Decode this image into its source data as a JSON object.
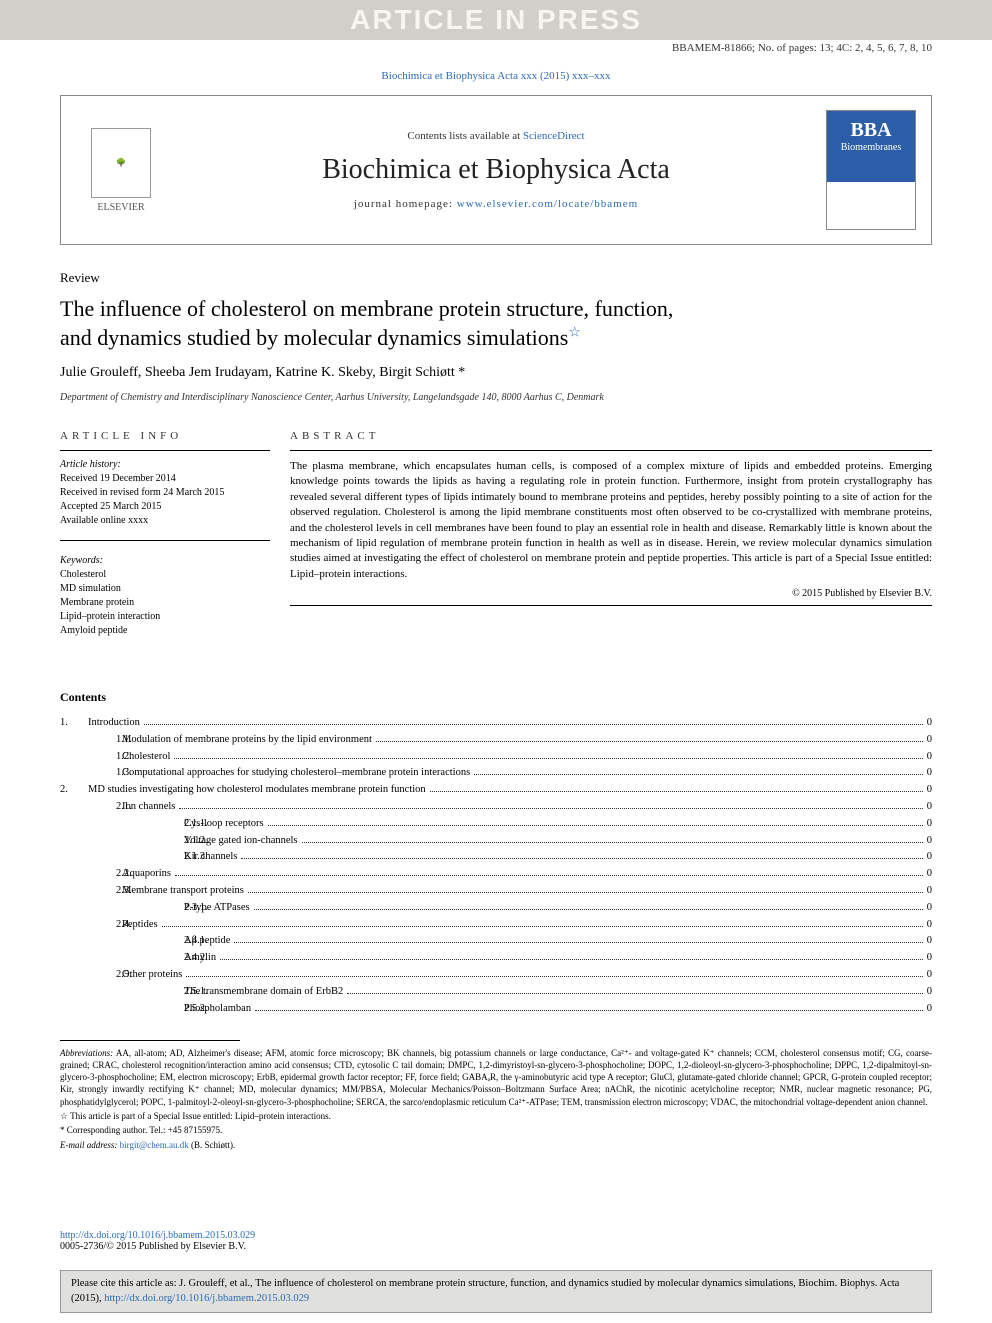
{
  "watermark": "ARTICLE IN PRESS",
  "docinfo": "BBAMEM-81866; No. of pages: 13; 4C: 2, 4, 5, 6, 7, 8, 10",
  "citation_top": "Biochimica et Biophysica Acta xxx (2015) xxx–xxx",
  "header": {
    "contents_prefix": "Contents lists available at ",
    "contents_link": "ScienceDirect",
    "journal_title": "Biochimica et Biophysica Acta",
    "homepage_prefix": "journal homepage: ",
    "homepage_link": "www.elsevier.com/locate/bbamem",
    "elsevier": "ELSEVIER",
    "bba_abbrev": "BBA",
    "bba_sub": "Biomembranes"
  },
  "article": {
    "type": "Review",
    "title_line1": "The influence of cholesterol on membrane protein structure, function,",
    "title_line2": "and dynamics studied by molecular dynamics simulations",
    "star": "☆",
    "authors": "Julie Grouleff, Sheeba Jem Irudayam, Katrine K. Skeby, Birgit Schiøtt *",
    "affiliation": "Department of Chemistry and Interdisciplinary Nanoscience Center, Aarhus University, Langelandsgade 140, 8000 Aarhus C, Denmark"
  },
  "info": {
    "left_head": "ARTICLE INFO",
    "right_head": "ABSTRACT",
    "history_head": "Article history:",
    "history": [
      "Received 19 December 2014",
      "Received in revised form 24 March 2015",
      "Accepted 25 March 2015",
      "Available online xxxx"
    ],
    "keywords_head": "Keywords:",
    "keywords": [
      "Cholesterol",
      "MD simulation",
      "Membrane protein",
      "Lipid–protein interaction",
      "Amyloid peptide"
    ],
    "abstract": "The plasma membrane, which encapsulates human cells, is composed of a complex mixture of lipids and embedded proteins. Emerging knowledge points towards the lipids as having a regulating role in protein function. Furthermore, insight from protein crystallography has revealed several different types of lipids intimately bound to membrane proteins and peptides, hereby possibly pointing to a site of action for the observed regulation. Cholesterol is among the lipid membrane constituents most often observed to be co-crystallized with membrane proteins, and the cholesterol levels in cell membranes have been found to play an essential role in health and disease. Remarkably little is known about the mechanism of lipid regulation of membrane protein function in health as well as in disease. Herein, we review molecular dynamics simulation studies aimed at investigating the effect of cholesterol on membrane protein and peptide properties. This article is part of a Special Issue entitled: Lipid–protein interactions.",
    "copyright": "© 2015 Published by Elsevier B.V."
  },
  "contents": {
    "head": "Contents",
    "rows": [
      {
        "indent": 0,
        "num": "1.",
        "label": "Introduction",
        "page": "0"
      },
      {
        "indent": 1,
        "num": "1.1.",
        "label": "Modulation of membrane proteins by the lipid environment",
        "page": "0"
      },
      {
        "indent": 1,
        "num": "1.2.",
        "label": "Cholesterol",
        "page": "0"
      },
      {
        "indent": 1,
        "num": "1.3.",
        "label": "Computational approaches for studying cholesterol–membrane protein interactions",
        "page": "0"
      },
      {
        "indent": 0,
        "num": "2.",
        "label": "MD studies investigating how cholesterol modulates membrane protein function",
        "page": "0"
      },
      {
        "indent": 1,
        "num": "2.1.",
        "label": "Ion channels",
        "page": "0"
      },
      {
        "indent": 2,
        "num": "2.1.1.",
        "label": "Cys-loop receptors",
        "page": "0"
      },
      {
        "indent": 2,
        "num": "2.1.2.",
        "label": "Voltage gated ion-channels",
        "page": "0"
      },
      {
        "indent": 2,
        "num": "2.1.3.",
        "label": "Kir channels",
        "page": "0"
      },
      {
        "indent": 1,
        "num": "2.2.",
        "label": "Aquaporins",
        "page": "0"
      },
      {
        "indent": 1,
        "num": "2.3.",
        "label": "Membrane transport proteins",
        "page": "0"
      },
      {
        "indent": 2,
        "num": "2.3.1.",
        "label": "P-type ATPases",
        "page": "0"
      },
      {
        "indent": 1,
        "num": "2.4.",
        "label": "Peptides",
        "page": "0"
      },
      {
        "indent": 2,
        "num": "2.4.1.",
        "label": "Aβ peptide",
        "page": "0"
      },
      {
        "indent": 2,
        "num": "2.4.2.",
        "label": "Amylin",
        "page": "0"
      },
      {
        "indent": 1,
        "num": "2.5.",
        "label": "Other proteins",
        "page": "0"
      },
      {
        "indent": 2,
        "num": "2.5.1.",
        "label": "The transmembrane domain of ErbB2",
        "page": "0"
      },
      {
        "indent": 2,
        "num": "2.5.2.",
        "label": "Phospholamban",
        "page": "0"
      }
    ]
  },
  "footer": {
    "abbrev_head": "Abbreviations:",
    "abbrev": " AA, all-atom; AD, Alzheimer's disease; AFM, atomic force microscopy; BK channels, big potassium channels or large conductance, Ca²⁺- and voltage-gated K⁺ channels; CCM, cholesterol consensus motif; CG, coarse-grained; CRAC, cholesterol recognition/interaction amino acid consensus; CTD, cytosolic C tail domain; DMPC, 1,2-dimyristoyl-sn-glycero-3-phosphocholine; DOPC, 1,2-dioleoyl-sn-glycero-3-phosphocholine; DPPC, 1,2-dipalmitoyl-sn-glycero-3-phosphocholine; EM, electron microscopy; ErbB, epidermal growth factor receptor; FF, force field; GABAₐR, the γ-aminobutyric acid type A receptor; GluCl, glutamate-gated chloride channel; GPCR, G-protein coupled receptor; Kir, strongly inwardly rectifying K⁺ channel; MD, molecular dynamics; MM/PBSA, Molecular Mechanics/Poisson–Boltzmann Surface Area; nAChR, the nicotinic acetylcholine receptor; NMR, nuclear magnetic resonance; PG, phosphatidylglycerol; POPC, 1-palmitoyl-2-oleoyl-sn-glycero-3-phosphocholine; SERCA, the sarco/endoplasmic reticulum Ca²⁺-ATPase; TEM, transmission electron microscopy; VDAC, the mitochondrial voltage-dependent anion channel.",
    "note_star": "☆  This article is part of a Special Issue entitled: Lipid–protein interactions.",
    "note_corr": "*  Corresponding author. Tel.: +45 87155975.",
    "email_prefix": "E-mail address: ",
    "email": "birgit@chem.au.dk",
    "email_suffix": " (B. Schiøtt)."
  },
  "doi": {
    "link": "http://dx.doi.org/10.1016/j.bbamem.2015.03.029",
    "issn": "0005-2736/© 2015 Published by Elsevier B.V."
  },
  "citebox": {
    "prefix": "Please cite this article as: J. Grouleff, et al., The influence of cholesterol on membrane protein structure, function, and dynamics studied by molecular dynamics simulations, Biochim. Biophys. Acta (2015), ",
    "link": "http://dx.doi.org/10.1016/j.bbamem.2015.03.029"
  }
}
